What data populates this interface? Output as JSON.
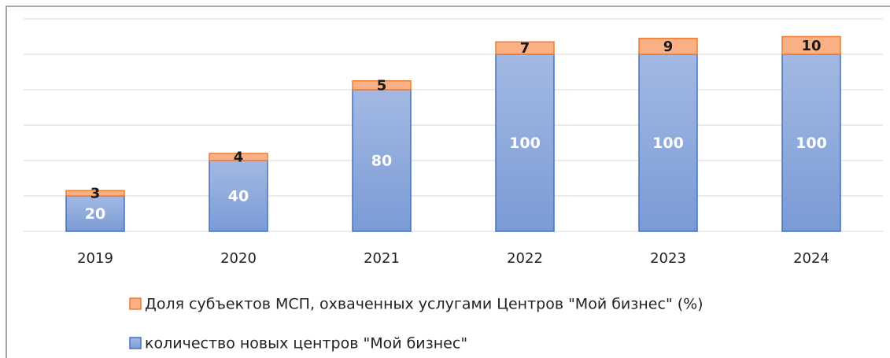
{
  "chart_data": {
    "type": "stacked_bar",
    "categories": [
      "2019",
      "2020",
      "2021",
      "2022",
      "2023",
      "2024"
    ],
    "series": [
      {
        "name": "количество новых центров \"Мой бизнес\"",
        "color": "#8eaadb",
        "border": "#4472c4",
        "values": [
          20,
          40,
          80,
          100,
          100,
          100
        ]
      },
      {
        "name": "Доля субъектов МСП, охваченных услугами Центров \"Мой бизнес\" (%)",
        "color": "#f8b084",
        "border": "#ed7d31",
        "values": [
          3,
          4,
          5,
          7,
          9,
          10
        ]
      }
    ],
    "ylim": [
      0,
      120
    ],
    "yticks": [
      0,
      20,
      40,
      60,
      80,
      100,
      120
    ],
    "grid": true
  }
}
